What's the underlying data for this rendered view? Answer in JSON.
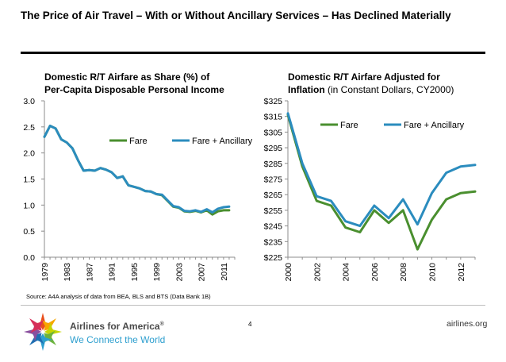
{
  "slide": {
    "title": "The Price of Air Travel – With or Without Ancillary Services – Has Declined Materially",
    "source": "Source: A4A analysis of data from BEA, BLS and BTS (Data Bank 1B)",
    "page_number": "4",
    "brand_name": "Airlines for America",
    "brand_mark": "®",
    "tagline": "We Connect the World",
    "website": "airlines.org"
  },
  "chart_data": [
    {
      "type": "line",
      "title_line1": "Domestic R/T Airfare as Share (%) of",
      "title_line2": "Per-Capita Disposable Personal Income",
      "xlim": [
        1979,
        2013
      ],
      "ylim": [
        0,
        3.0
      ],
      "y_ticks": [
        "0.0",
        "0.5",
        "1.0",
        "1.5",
        "2.0",
        "2.5",
        "3.0"
      ],
      "x_ticks": [
        "1979",
        "1983",
        "1987",
        "1991",
        "1995",
        "1999",
        "2003",
        "2007",
        "2011"
      ],
      "legend_position": "top-right",
      "grid": false,
      "series": [
        {
          "name": "Fare",
          "color": "#4a8f2f",
          "x": [
            1979,
            1980,
            1981,
            1982,
            1983,
            1984,
            1985,
            1986,
            1987,
            1988,
            1989,
            1990,
            1991,
            1992,
            1993,
            1994,
            1995,
            1996,
            1997,
            1998,
            1999,
            2000,
            2001,
            2002,
            2003,
            2004,
            2005,
            2006,
            2007,
            2008,
            2009,
            2010,
            2011,
            2012
          ],
          "values": [
            2.31,
            2.52,
            2.47,
            2.26,
            2.2,
            2.09,
            1.86,
            1.66,
            1.67,
            1.66,
            1.71,
            1.68,
            1.63,
            1.52,
            1.55,
            1.38,
            1.35,
            1.32,
            1.27,
            1.26,
            1.21,
            1.19,
            1.08,
            0.97,
            0.95,
            0.88,
            0.87,
            0.89,
            0.86,
            0.9,
            0.82,
            0.88,
            0.9,
            0.9
          ]
        },
        {
          "name": "Fare + Ancillary",
          "color": "#2b8cbe",
          "x": [
            1979,
            1980,
            1981,
            1982,
            1983,
            1984,
            1985,
            1986,
            1987,
            1988,
            1989,
            1990,
            1991,
            1992,
            1993,
            1994,
            1995,
            1996,
            1997,
            1998,
            1999,
            2000,
            2001,
            2002,
            2003,
            2004,
            2005,
            2006,
            2007,
            2008,
            2009,
            2010,
            2011,
            2012
          ],
          "values": [
            2.31,
            2.52,
            2.47,
            2.26,
            2.2,
            2.09,
            1.86,
            1.66,
            1.67,
            1.66,
            1.71,
            1.68,
            1.63,
            1.52,
            1.55,
            1.38,
            1.35,
            1.32,
            1.27,
            1.26,
            1.21,
            1.2,
            1.09,
            0.98,
            0.96,
            0.89,
            0.88,
            0.9,
            0.87,
            0.92,
            0.86,
            0.93,
            0.96,
            0.97
          ]
        }
      ]
    },
    {
      "type": "line",
      "title_line1": "Domestic R/T Airfare Adjusted for",
      "title_line2": "Inflation",
      "title_line2_suffix": "(in Constant Dollars, CY2000)",
      "xlim": [
        2000,
        2013
      ],
      "ylim": [
        225,
        325
      ],
      "y_ticks": [
        "$225",
        "$235",
        "$245",
        "$255",
        "$265",
        "$275",
        "$285",
        "$295",
        "$305",
        "$315",
        "$325"
      ],
      "x_ticks": [
        "2000",
        "2002",
        "2004",
        "2006",
        "2008",
        "2010",
        "2012"
      ],
      "legend_position": "top-right",
      "grid": false,
      "series": [
        {
          "name": "Fare",
          "color": "#4a8f2f",
          "x": [
            2000,
            2001,
            2002,
            2003,
            2004,
            2005,
            2006,
            2007,
            2008,
            2009,
            2010,
            2011,
            2012,
            2013
          ],
          "values": [
            316,
            283,
            261,
            258,
            244,
            241,
            255,
            247,
            255,
            230,
            249,
            262,
            266,
            267
          ]
        },
        {
          "name": "Fare + Ancillary",
          "color": "#2b8cbe",
          "x": [
            2000,
            2001,
            2002,
            2003,
            2004,
            2005,
            2006,
            2007,
            2008,
            2009,
            2010,
            2011,
            2012,
            2013
          ],
          "values": [
            317,
            285,
            264,
            261,
            248,
            245,
            258,
            250,
            262,
            246,
            266,
            279,
            283,
            284
          ]
        }
      ]
    }
  ]
}
